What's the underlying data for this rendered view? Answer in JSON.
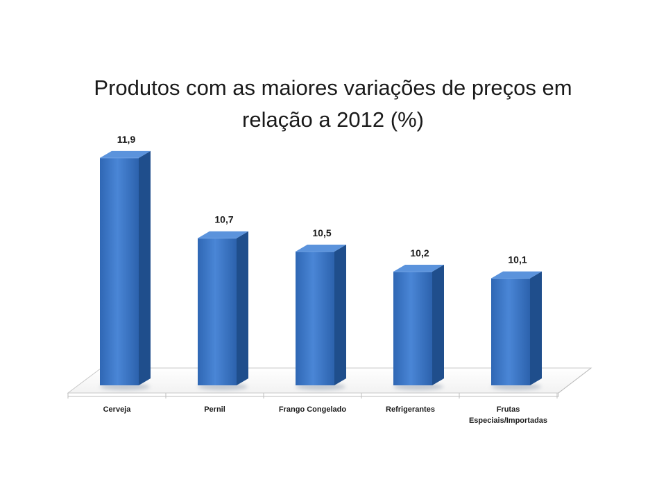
{
  "chart_data": {
    "type": "bar",
    "title_lines": [
      "Produtos com as maiores variações de preços em",
      "relação a 2012 (%)"
    ],
    "categories": [
      [
        "Cerveja"
      ],
      [
        "Pernil"
      ],
      [
        "Frango Congelado"
      ],
      [
        "Refrigerantes"
      ],
      [
        "Frutas",
        "Especiais/Importadas"
      ]
    ],
    "values": [
      11.9,
      10.7,
      10.5,
      10.2,
      10.1
    ],
    "value_labels": [
      "11,9",
      "10,7",
      "10,5",
      "10,2",
      "10,1"
    ],
    "ylim": [
      8.5,
      12.5
    ],
    "grid": false,
    "bar_color": "#3a78c9",
    "bar_side_color": "#1f4e8c",
    "bar_top_color": "#5b93dc"
  }
}
